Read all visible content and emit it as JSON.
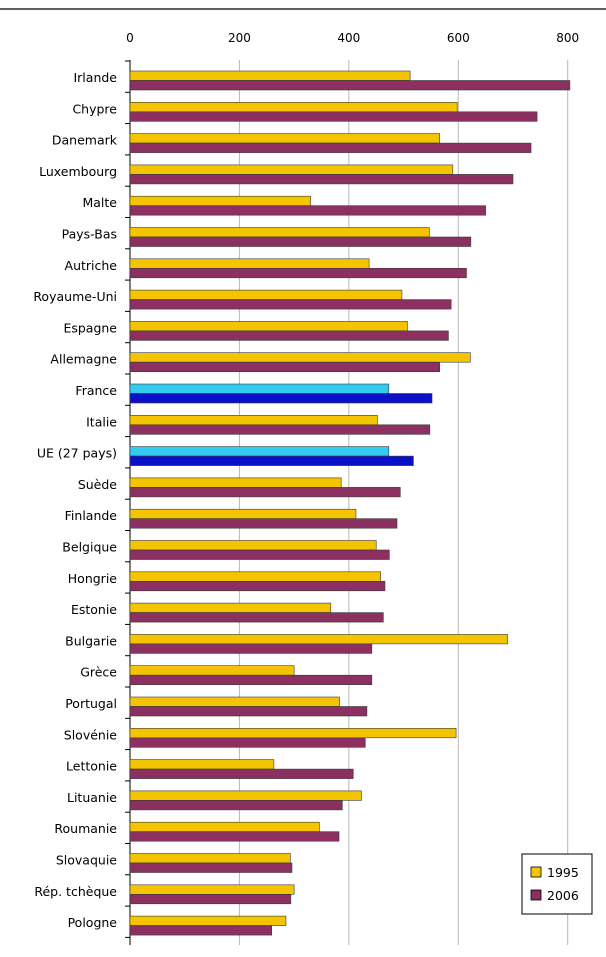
{
  "chart_data": {
    "type": "bar",
    "orientation": "horizontal",
    "xlim": [
      0,
      870
    ],
    "xticks": [
      0,
      200,
      400,
      600,
      800
    ],
    "grid": true,
    "legend_position": "bottom-right",
    "categories": [
      "Irlande",
      "Chypre",
      "Danemark",
      "Luxembourg",
      "Malte",
      "Pays-Bas",
      "Autriche",
      "Royaume-Uni",
      "Espagne",
      "Allemagne",
      "France",
      "Italie",
      "UE (27 pays)",
      "Suède",
      "Finlande",
      "Belgique",
      "Hongrie",
      "Estonie",
      "Bulgarie",
      "Grèce",
      "Portugal",
      "Slovénie",
      "Lettonie",
      "Lituanie",
      "Roumanie",
      "Slovaquie",
      "Rép. tchèque",
      "Pologne"
    ],
    "highlighted": [
      "France",
      "UE (27 pays)"
    ],
    "series": [
      {
        "name": "1995",
        "color": "#f5c400",
        "highlight_color": "#33ccee",
        "values": [
          512,
          598,
          566,
          590,
          330,
          547,
          437,
          497,
          507,
          622,
          473,
          452,
          473,
          386,
          413,
          450,
          458,
          367,
          690,
          300,
          383,
          596,
          263,
          423,
          346,
          293,
          300,
          285
        ]
      },
      {
        "name": "2006",
        "color": "#8b3060",
        "highlight_color": "#0a10c8",
        "values": [
          804,
          744,
          733,
          700,
          650,
          623,
          615,
          587,
          582,
          566,
          552,
          548,
          518,
          494,
          488,
          474,
          466,
          463,
          442,
          442,
          433,
          430,
          408,
          388,
          382,
          296,
          294,
          259
        ]
      }
    ]
  }
}
